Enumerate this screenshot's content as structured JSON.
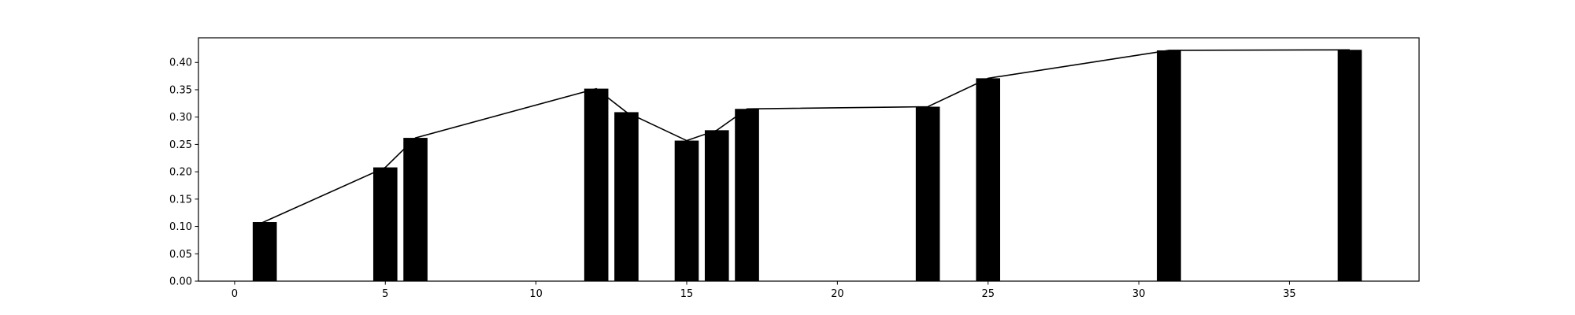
{
  "chart_data": {
    "type": "bar",
    "title": "",
    "xlabel": "",
    "ylabel": "",
    "xlim": [
      -1.2,
      39.3
    ],
    "ylim": [
      0,
      0.445
    ],
    "grid": false,
    "legend": "none",
    "x_ticks": [
      0,
      5,
      10,
      15,
      20,
      25,
      30,
      35
    ],
    "x_tick_labels": [
      "0",
      "5",
      "10",
      "15",
      "20",
      "25",
      "30",
      "35"
    ],
    "y_ticks": [
      0.0,
      0.05,
      0.1,
      0.15,
      0.2,
      0.25,
      0.3,
      0.35,
      0.4
    ],
    "y_tick_labels": [
      "0.00",
      "0.05",
      "0.10",
      "0.15",
      "0.20",
      "0.25",
      "0.30",
      "0.35",
      "0.40"
    ],
    "bar_width": 0.8,
    "series": [
      {
        "type": "bar",
        "color": "#000000",
        "x": [
          1,
          5,
          6,
          12,
          13,
          15,
          16,
          17,
          23,
          25,
          31,
          37
        ],
        "values": [
          0.108,
          0.208,
          0.262,
          0.352,
          0.309,
          0.257,
          0.276,
          0.315,
          0.319,
          0.371,
          0.422,
          0.423
        ]
      },
      {
        "type": "line",
        "color": "#000000",
        "x": [
          0.8,
          5,
          6,
          12,
          13,
          15,
          16,
          17,
          23,
          25,
          31,
          37
        ],
        "values": [
          0.104,
          0.208,
          0.262,
          0.352,
          0.309,
          0.257,
          0.276,
          0.315,
          0.319,
          0.371,
          0.422,
          0.423
        ]
      }
    ]
  }
}
